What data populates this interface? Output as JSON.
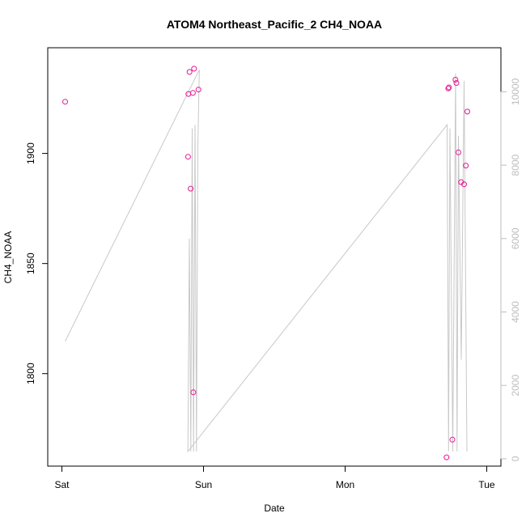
{
  "chart_data": {
    "type": "scatter",
    "title": "ATOM4 Northeast_Pacific_2 CH4_NOAA",
    "xlabel": "Date",
    "ylabel": "CH4_NOAA",
    "x_ticks": [
      {
        "value": 0.0,
        "label": "Sat"
      },
      {
        "value": 1.0,
        "label": "Sun"
      },
      {
        "value": 2.0,
        "label": "Mon"
      },
      {
        "value": 3.0,
        "label": "Tue"
      }
    ],
    "xlim": [
      -0.1,
      3.1
    ],
    "ylim": [
      1758,
      1948
    ],
    "y_ticks": [
      1800,
      1850,
      1900
    ],
    "y2lim": [
      -200,
      11200
    ],
    "y2_ticks": [
      0,
      2000,
      4000,
      6000,
      8000,
      10000
    ],
    "grid": false,
    "colors": {
      "points": "#e8168f",
      "line": "#c8c8c8",
      "axis": "#000000",
      "secondary_axis": "#bdbdbd"
    },
    "series": [
      {
        "role": "points",
        "axis": "left",
        "x": [
          0.023,
          0.891,
          0.901,
          0.893,
          0.909,
          0.925,
          0.933,
          0.928,
          0.964,
          2.716,
          2.728,
          2.733,
          2.757,
          2.779,
          2.786,
          2.8,
          2.819,
          2.84,
          2.852,
          2.863
        ],
        "y": [
          1923.5,
          1898.5,
          1937,
          1927,
          1884,
          1927.5,
          1938.5,
          1791.5,
          1929,
          1762,
          1929.5,
          1930,
          1770,
          1933.5,
          1932,
          1900.5,
          1887,
          1886,
          1894.5,
          1919
        ]
      },
      {
        "role": "line",
        "axis": "right",
        "x": [
          0.023,
          0.97,
          0.96,
          0.95,
          0.94,
          0.93,
          0.92,
          0.91,
          0.9,
          0.89,
          2.72,
          2.73,
          2.74,
          2.76,
          2.78,
          2.79,
          2.8,
          2.82,
          2.84,
          2.86
        ],
        "y": [
          3200,
          10600,
          8500,
          200,
          9100,
          200,
          9000,
          200,
          6000,
          200,
          9100,
          200,
          9000,
          200,
          10500,
          200,
          8800,
          2700,
          10300,
          200
        ]
      }
    ]
  }
}
